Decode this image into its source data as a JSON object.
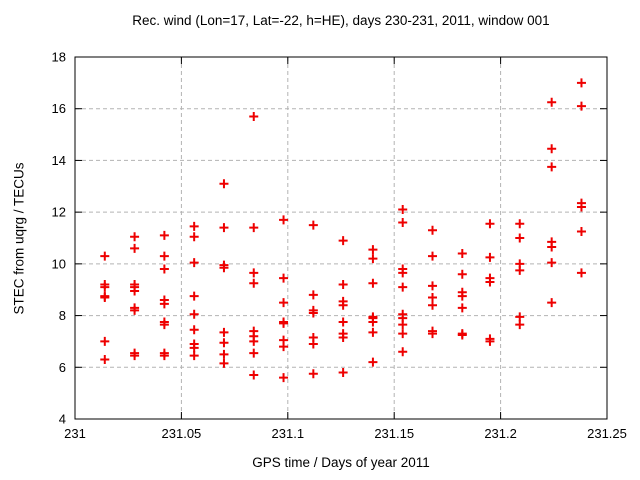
{
  "chart_data": {
    "type": "scatter",
    "title": "Rec. wind (Lon=17, Lat=-22, h=HE), days 230-231, 2011, window 001",
    "xlabel": "GPS time / Days of year 2011",
    "ylabel": "STEC from uqrg / TECUs",
    "xlim": [
      231,
      231.25
    ],
    "ylim": [
      4,
      18
    ],
    "xticks": [
      231,
      231.05,
      231.1,
      231.15,
      231.2,
      231.25
    ],
    "xtick_labels": [
      "231",
      "231.05",
      "231.1",
      "231.15",
      "231.2",
      "231.25"
    ],
    "yticks": [
      4,
      6,
      8,
      10,
      12,
      14,
      16,
      18
    ],
    "ytick_labels": [
      "4",
      "6",
      "8",
      "10",
      "12",
      "14",
      "16",
      "18"
    ],
    "grid": true,
    "grid_style": "dashed",
    "grid_color": "#b3b3b3",
    "legend": "none",
    "marker": "plus",
    "marker_color": "#ee0000",
    "series": [
      {
        "name": "STEC",
        "points": [
          [
            231.014,
            10.3
          ],
          [
            231.014,
            9.2
          ],
          [
            231.014,
            9.1
          ],
          [
            231.014,
            8.75
          ],
          [
            231.014,
            8.7
          ],
          [
            231.014,
            7.0
          ],
          [
            231.014,
            6.3
          ],
          [
            231.028,
            11.05
          ],
          [
            231.028,
            10.6
          ],
          [
            231.028,
            9.2
          ],
          [
            231.028,
            9.1
          ],
          [
            231.028,
            8.95
          ],
          [
            231.028,
            8.3
          ],
          [
            231.028,
            8.2
          ],
          [
            231.028,
            6.55
          ],
          [
            231.028,
            6.45
          ],
          [
            231.042,
            11.1
          ],
          [
            231.042,
            10.3
          ],
          [
            231.042,
            9.8
          ],
          [
            231.042,
            8.6
          ],
          [
            231.042,
            8.45
          ],
          [
            231.042,
            7.75
          ],
          [
            231.042,
            7.65
          ],
          [
            231.042,
            6.55
          ],
          [
            231.042,
            6.45
          ],
          [
            231.056,
            11.45
          ],
          [
            231.056,
            11.05
          ],
          [
            231.056,
            10.05
          ],
          [
            231.056,
            8.75
          ],
          [
            231.056,
            8.05
          ],
          [
            231.056,
            7.45
          ],
          [
            231.056,
            6.9
          ],
          [
            231.056,
            6.75
          ],
          [
            231.056,
            6.45
          ],
          [
            231.07,
            13.1
          ],
          [
            231.07,
            11.4
          ],
          [
            231.07,
            9.95
          ],
          [
            231.07,
            9.85
          ],
          [
            231.07,
            7.35
          ],
          [
            231.07,
            6.95
          ],
          [
            231.07,
            6.5
          ],
          [
            231.07,
            6.15
          ],
          [
            231.084,
            15.7
          ],
          [
            231.084,
            11.4
          ],
          [
            231.084,
            9.65
          ],
          [
            231.084,
            9.25
          ],
          [
            231.084,
            7.4
          ],
          [
            231.084,
            7.2
          ],
          [
            231.084,
            7.0
          ],
          [
            231.084,
            6.55
          ],
          [
            231.084,
            5.7
          ],
          [
            231.098,
            11.7
          ],
          [
            231.098,
            9.45
          ],
          [
            231.098,
            8.5
          ],
          [
            231.098,
            7.75
          ],
          [
            231.098,
            7.7
          ],
          [
            231.098,
            7.05
          ],
          [
            231.098,
            6.8
          ],
          [
            231.098,
            5.6
          ],
          [
            231.112,
            11.5
          ],
          [
            231.112,
            8.8
          ],
          [
            231.112,
            8.2
          ],
          [
            231.112,
            8.1
          ],
          [
            231.112,
            7.15
          ],
          [
            231.112,
            6.9
          ],
          [
            231.112,
            5.75
          ],
          [
            231.126,
            10.9
          ],
          [
            231.126,
            9.2
          ],
          [
            231.126,
            8.55
          ],
          [
            231.126,
            8.4
          ],
          [
            231.126,
            7.75
          ],
          [
            231.126,
            7.3
          ],
          [
            231.126,
            7.15
          ],
          [
            231.126,
            5.8
          ],
          [
            231.14,
            10.55
          ],
          [
            231.14,
            10.2
          ],
          [
            231.14,
            9.25
          ],
          [
            231.14,
            7.95
          ],
          [
            231.14,
            7.9
          ],
          [
            231.14,
            7.75
          ],
          [
            231.14,
            7.35
          ],
          [
            231.14,
            6.2
          ],
          [
            231.154,
            12.1
          ],
          [
            231.154,
            11.6
          ],
          [
            231.154,
            9.8
          ],
          [
            231.154,
            9.65
          ],
          [
            231.154,
            9.1
          ],
          [
            231.154,
            8.05
          ],
          [
            231.154,
            7.9
          ],
          [
            231.154,
            7.65
          ],
          [
            231.154,
            7.3
          ],
          [
            231.154,
            6.6
          ],
          [
            231.168,
            11.3
          ],
          [
            231.168,
            10.3
          ],
          [
            231.168,
            9.15
          ],
          [
            231.168,
            8.7
          ],
          [
            231.168,
            8.4
          ],
          [
            231.168,
            7.4
          ],
          [
            231.168,
            7.3
          ],
          [
            231.182,
            10.4
          ],
          [
            231.182,
            9.6
          ],
          [
            231.182,
            8.9
          ],
          [
            231.182,
            8.75
          ],
          [
            231.182,
            8.3
          ],
          [
            231.182,
            7.3
          ],
          [
            231.182,
            7.25
          ],
          [
            231.195,
            11.55
          ],
          [
            231.195,
            10.25
          ],
          [
            231.195,
            9.45
          ],
          [
            231.195,
            9.3
          ],
          [
            231.195,
            7.1
          ],
          [
            231.195,
            7.0
          ],
          [
            231.209,
            11.55
          ],
          [
            231.209,
            11.0
          ],
          [
            231.209,
            10.0
          ],
          [
            231.209,
            9.75
          ],
          [
            231.209,
            7.95
          ],
          [
            231.209,
            7.65
          ],
          [
            231.224,
            16.25
          ],
          [
            231.224,
            14.45
          ],
          [
            231.224,
            13.75
          ],
          [
            231.224,
            10.85
          ],
          [
            231.224,
            10.65
          ],
          [
            231.224,
            10.05
          ],
          [
            231.224,
            8.5
          ],
          [
            231.238,
            17.0
          ],
          [
            231.238,
            16.1
          ],
          [
            231.238,
            12.35
          ],
          [
            231.238,
            12.2
          ],
          [
            231.238,
            11.25
          ],
          [
            231.238,
            9.65
          ]
        ]
      }
    ]
  }
}
